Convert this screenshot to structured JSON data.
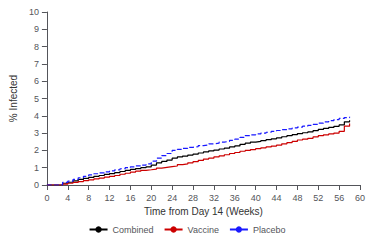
{
  "chart_data": {
    "type": "step",
    "xlabel": "Time from Day 14 (Weeks)",
    "ylabel": "% Infected",
    "x": [
      0,
      3,
      4,
      5,
      6,
      7,
      8,
      9,
      10,
      11,
      12,
      13,
      14,
      15,
      16,
      17,
      18,
      19,
      20,
      21,
      22,
      23,
      24,
      25,
      26,
      27,
      28,
      29,
      30,
      31,
      32,
      33,
      34,
      35,
      36,
      37,
      38,
      39,
      40,
      41,
      42,
      43,
      44,
      45,
      46,
      47,
      48,
      49,
      50,
      51,
      52,
      53,
      54,
      55,
      56,
      57,
      58
    ],
    "series": [
      {
        "name": "Combined",
        "color": "#000000",
        "line_style": "solid",
        "values": [
          0.0,
          0.1,
          0.16,
          0.24,
          0.32,
          0.38,
          0.44,
          0.5,
          0.55,
          0.61,
          0.66,
          0.72,
          0.78,
          0.84,
          0.9,
          0.95,
          1.0,
          1.05,
          1.15,
          1.28,
          1.36,
          1.44,
          1.55,
          1.62,
          1.67,
          1.73,
          1.78,
          1.85,
          1.91,
          1.97,
          2.02,
          2.08,
          2.13,
          2.2,
          2.26,
          2.35,
          2.42,
          2.48,
          2.52,
          2.57,
          2.62,
          2.67,
          2.72,
          2.79,
          2.85,
          2.91,
          2.97,
          3.02,
          3.07,
          3.14,
          3.21,
          3.27,
          3.33,
          3.39,
          3.47,
          3.65,
          3.75
        ]
      },
      {
        "name": "Vaccine",
        "color": "#cc0000",
        "line_style": "solid",
        "values": [
          0.0,
          0.05,
          0.1,
          0.15,
          0.2,
          0.25,
          0.3,
          0.35,
          0.4,
          0.45,
          0.5,
          0.55,
          0.62,
          0.68,
          0.75,
          0.8,
          0.85,
          0.88,
          0.92,
          0.98,
          1.02,
          1.06,
          1.1,
          1.18,
          1.22,
          1.28,
          1.35,
          1.42,
          1.5,
          1.55,
          1.62,
          1.68,
          1.75,
          1.82,
          1.88,
          1.95,
          2.0,
          2.05,
          2.1,
          2.15,
          2.2,
          2.25,
          2.3,
          2.38,
          2.45,
          2.52,
          2.6,
          2.65,
          2.7,
          2.78,
          2.85,
          2.9,
          2.95,
          3.0,
          3.1,
          3.4,
          3.55
        ]
      },
      {
        "name": "Placebo",
        "color": "#1a1aff",
        "line_style": "dashed",
        "values": [
          0.0,
          0.15,
          0.22,
          0.32,
          0.42,
          0.5,
          0.58,
          0.65,
          0.7,
          0.76,
          0.82,
          0.88,
          0.94,
          1.0,
          1.05,
          1.1,
          1.15,
          1.22,
          1.38,
          1.55,
          1.7,
          1.82,
          2.0,
          2.06,
          2.12,
          2.18,
          2.22,
          2.28,
          2.32,
          2.38,
          2.42,
          2.48,
          2.52,
          2.58,
          2.65,
          2.75,
          2.85,
          2.9,
          2.95,
          3.0,
          3.05,
          3.1,
          3.15,
          3.2,
          3.25,
          3.3,
          3.35,
          3.4,
          3.45,
          3.5,
          3.58,
          3.65,
          3.72,
          3.78,
          3.85,
          3.9,
          3.95
        ]
      }
    ],
    "xlim": [
      0,
      60
    ],
    "ylim": [
      0,
      10
    ],
    "xticks": [
      0,
      4,
      8,
      12,
      16,
      20,
      24,
      28,
      32,
      36,
      40,
      44,
      48,
      52,
      56,
      60
    ],
    "yticks": [
      0,
      1,
      2,
      3,
      4,
      5,
      6,
      7,
      8,
      9,
      10
    ],
    "grid": false,
    "legend": "bottom"
  }
}
